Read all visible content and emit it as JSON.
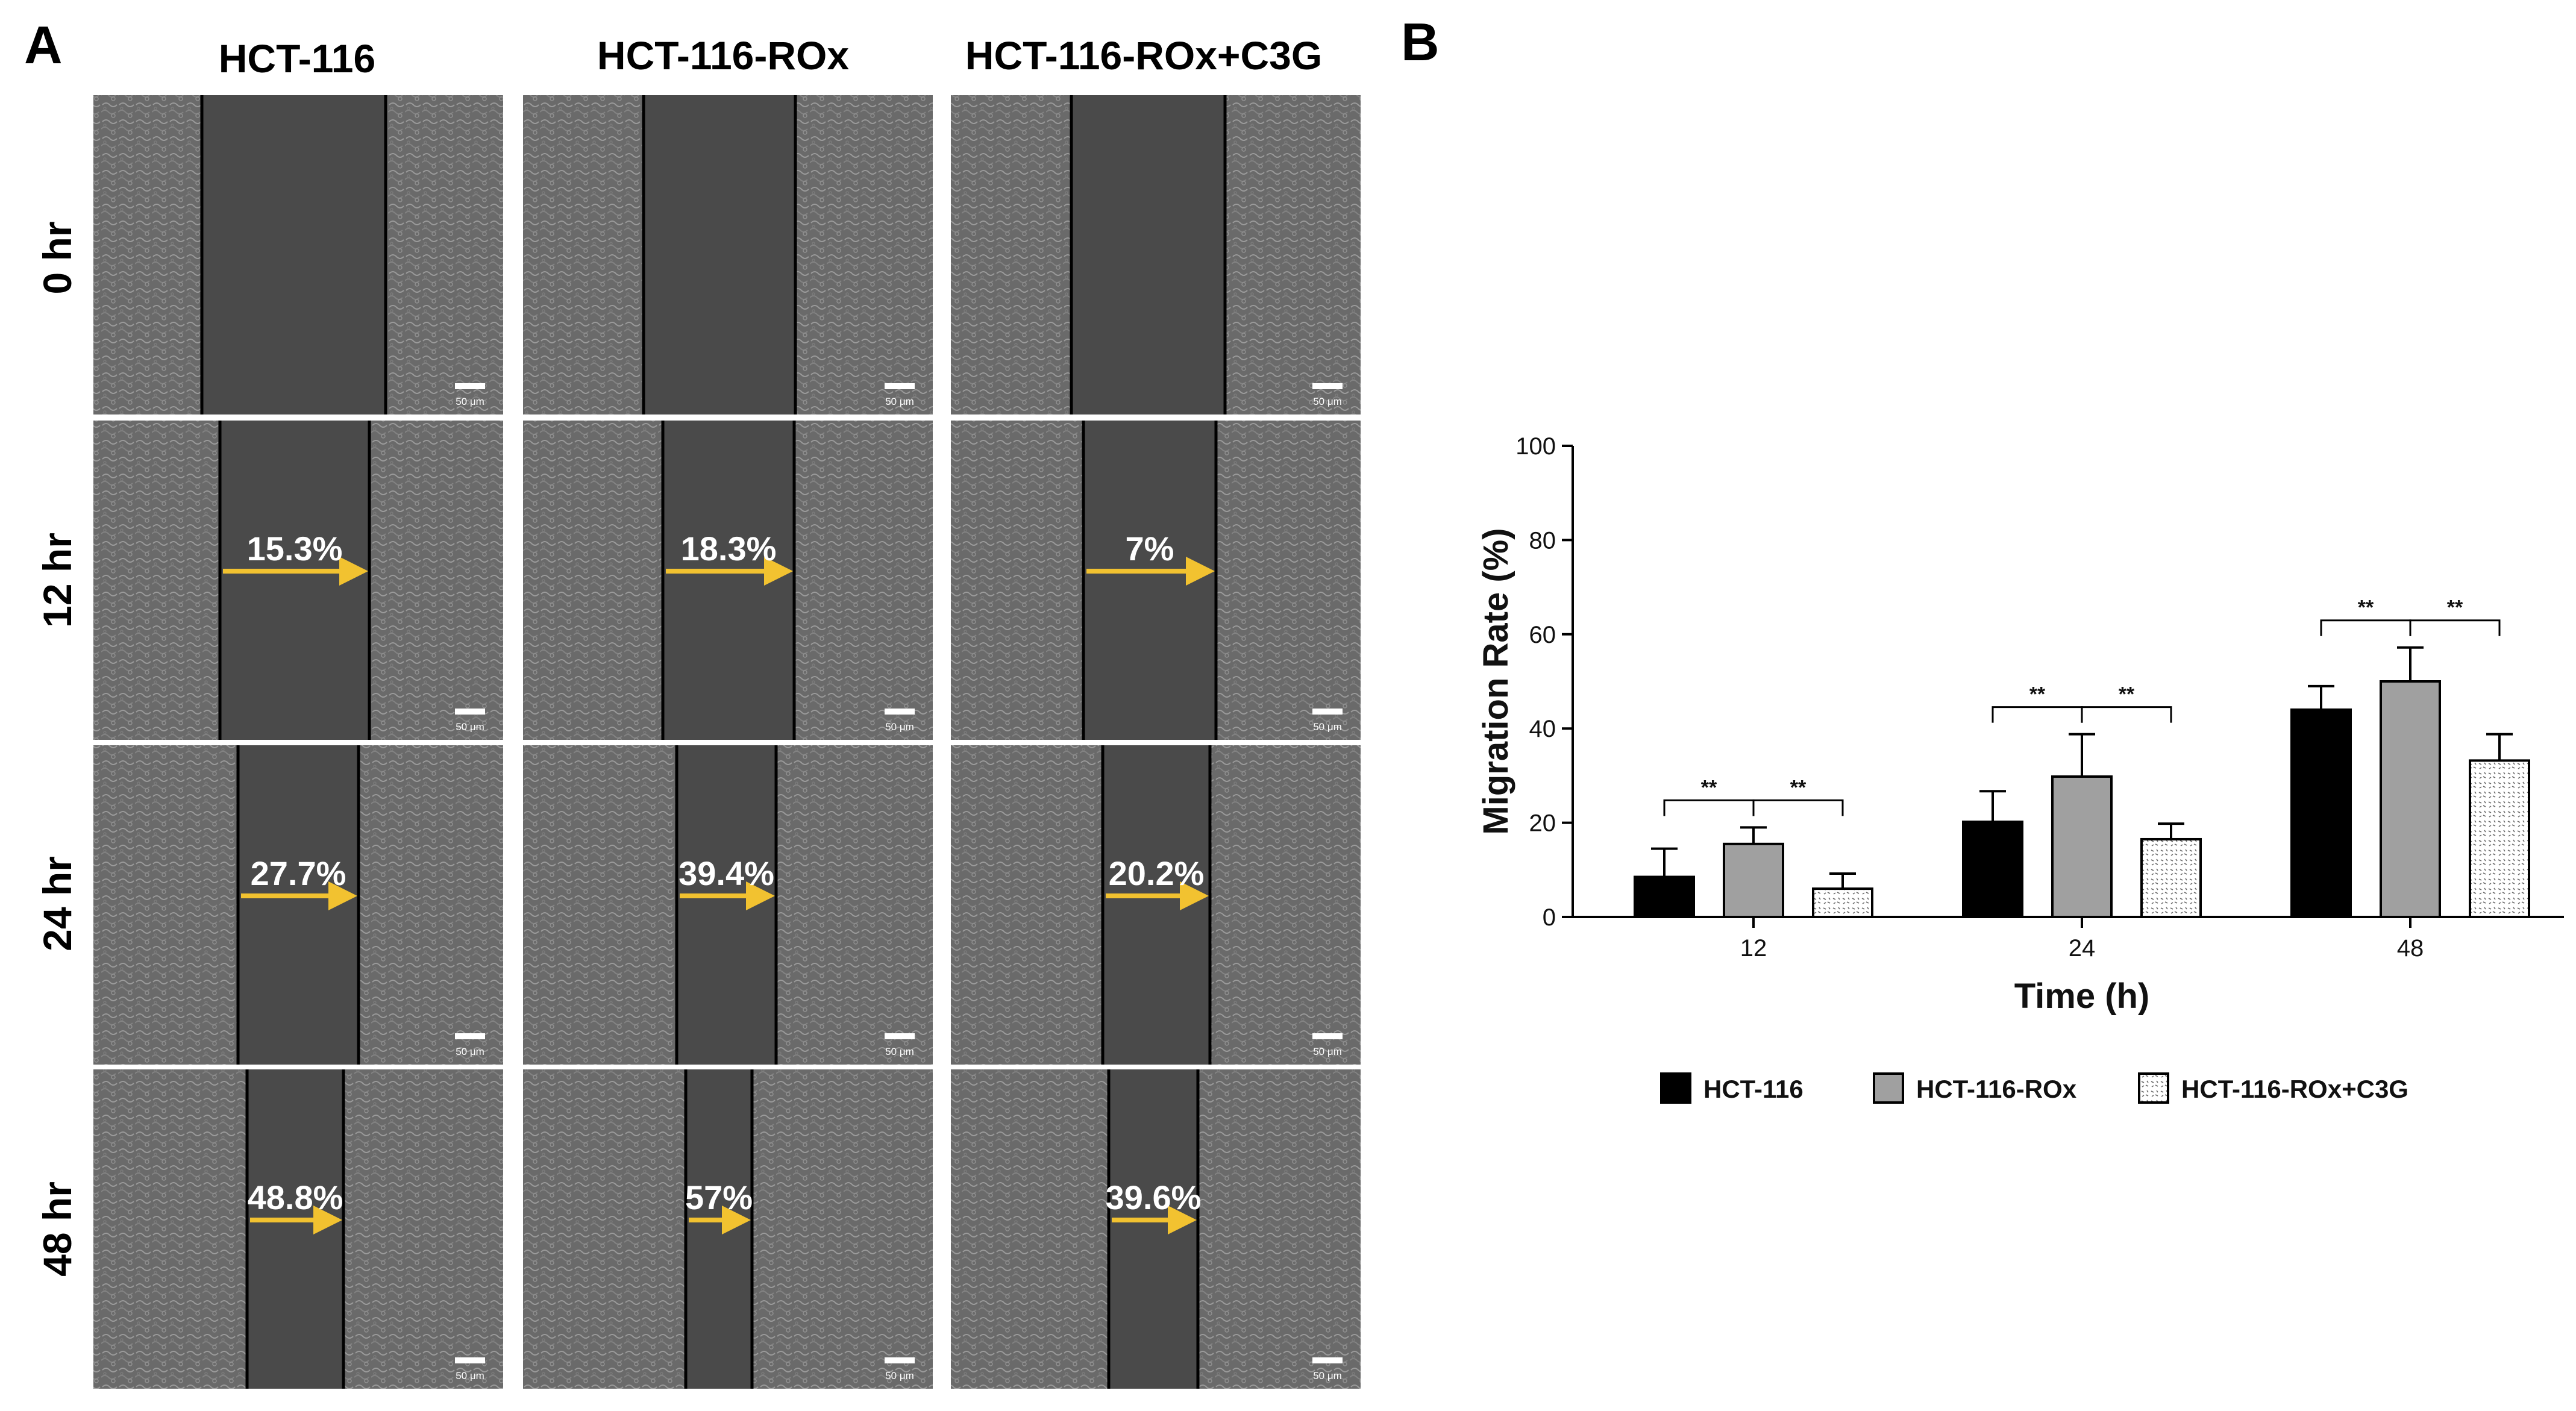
{
  "panel_a": {
    "label": "A",
    "columns": [
      "HCT-116",
      "HCT-116-ROx",
      "HCT-116-ROx+C3G"
    ],
    "rows": [
      "0 hr",
      "12 hr",
      "24 hr",
      "48 hr"
    ],
    "scale_bar_label": "50 μm",
    "colors": {
      "arrow": "#f2c230",
      "boundary": "#000000",
      "gap": "#4a4a4a",
      "cells": "#6e6e6e"
    },
    "percentages": [
      [
        "",
        "",
        ""
      ],
      [
        "15.3%",
        "18.3%",
        "7%"
      ],
      [
        "27.7%",
        "39.4%",
        "20.2%"
      ],
      [
        "48.8%",
        "57%",
        "39.6%"
      ]
    ]
  },
  "panel_b": {
    "label": "B",
    "chart_data": {
      "type": "bar",
      "title": "",
      "xlabel": "Time (h)",
      "ylabel": "Migration Rate (%)",
      "categories": [
        "12",
        "24",
        "48"
      ],
      "ylim": [
        0,
        100
      ],
      "yticks": [
        0,
        20,
        40,
        60,
        80,
        100
      ],
      "series": [
        {
          "name": "HCT-116",
          "values": [
            8.5,
            20.2,
            44.0
          ],
          "errors": [
            6.0,
            6.5,
            5.0
          ],
          "color": "#000000",
          "pattern": "solid"
        },
        {
          "name": "HCT-116-ROx",
          "values": [
            15.5,
            29.8,
            50.0
          ],
          "errors": [
            3.5,
            9.0,
            7.2
          ],
          "color": "#a0a0a0",
          "pattern": "solid"
        },
        {
          "name": "HCT-116-ROx+C3G",
          "values": [
            6.0,
            16.5,
            33.2
          ],
          "errors": [
            3.2,
            3.3,
            5.6
          ],
          "color": "#ffffff",
          "pattern": "dotted"
        }
      ],
      "significance": [
        {
          "category": "12",
          "pairs": [
            [
              "HCT-116",
              "HCT-116-ROx"
            ],
            [
              "HCT-116-ROx",
              "HCT-116-ROx+C3G"
            ]
          ],
          "label": "**"
        },
        {
          "category": "24",
          "pairs": [
            [
              "HCT-116",
              "HCT-116-ROx"
            ],
            [
              "HCT-116-ROx",
              "HCT-116-ROx+C3G"
            ]
          ],
          "label": "**"
        },
        {
          "category": "48",
          "pairs": [
            [
              "HCT-116",
              "HCT-116-ROx"
            ],
            [
              "HCT-116-ROx",
              "HCT-116-ROx+C3G"
            ]
          ],
          "label": "**"
        }
      ],
      "legend_placement": "bottom"
    }
  }
}
